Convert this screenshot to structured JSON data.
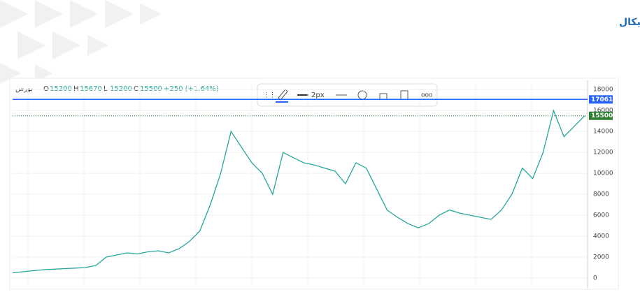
{
  "header": {
    "title": "تحلیل تکنیکال"
  },
  "chart_data": {
    "type": "line",
    "symbol": "بورس",
    "ohlc": [
      {
        "label": "O",
        "value": 15200
      },
      {
        "label": "H",
        "value": 15670
      },
      {
        "label": "L",
        "value": 15200
      },
      {
        "label": "C",
        "value": 15500
      }
    ],
    "change": "+250 (+1.64%)",
    "toolbar_width": "2px",
    "color": "#26a69a",
    "values": [
      500,
      600,
      700,
      800,
      850,
      900,
      950,
      1000,
      1200,
      2000,
      2200,
      2400,
      2300,
      2500,
      2600,
      2400,
      2800,
      3500,
      4500,
      7000,
      10000,
      14000,
      12500,
      11000,
      10000,
      8000,
      12000,
      11500,
      11000,
      10800,
      10500,
      10200,
      9000,
      11000,
      10500,
      8500,
      6500,
      5800,
      5200,
      4800,
      5200,
      6000,
      6500,
      6200,
      6000,
      5800,
      5600,
      6500,
      8000,
      10500,
      9500,
      12000,
      16000,
      13500,
      14500,
      15500
    ],
    "ylim": [
      -800,
      18950
    ],
    "yticks": [
      0,
      2000,
      4000,
      6000,
      8000,
      10000,
      12000,
      14000,
      16000,
      18000
    ],
    "grid": true,
    "price_lines": [
      {
        "value": 17061,
        "color": "#2962ff"
      },
      {
        "value": 15500,
        "color": "#2e7d32"
      }
    ]
  }
}
